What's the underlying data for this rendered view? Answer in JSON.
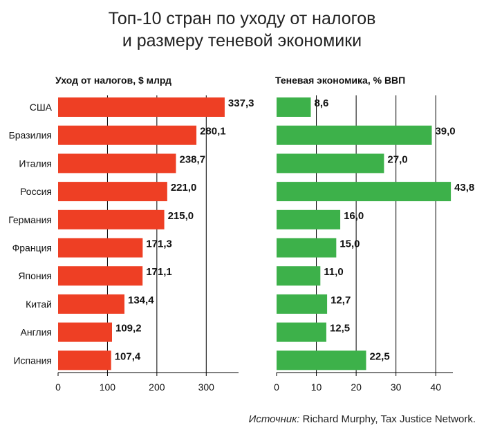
{
  "title_line1": "Топ-10 стран по уходу от налогов",
  "title_line2": "и размеру теневой экономики",
  "source_label": "Источник:",
  "source_text": " Richard Murphy, Tax Justice Network.",
  "colors": {
    "left_bars": "#ee3f24",
    "right_bars": "#3db14a",
    "text": "#111111",
    "grid": "#000000"
  },
  "chart_data": [
    {
      "type": "bar",
      "orientation": "horizontal",
      "title": "Уход от налогов, $ млрд",
      "categories": [
        "США",
        "Бразилия",
        "Италия",
        "Россия",
        "Германия",
        "Франция",
        "Япония",
        "Китай",
        "Англия",
        "Испания"
      ],
      "values": [
        337.3,
        280.1,
        238.7,
        221.0,
        215.0,
        171.3,
        171.1,
        134.4,
        109.2,
        107.4
      ],
      "value_labels": [
        "337,3",
        "280,1",
        "238,7",
        "221,0",
        "215,0",
        "171,3",
        "171,1",
        "134,4",
        "109,2",
        "107,4"
      ],
      "xlim": [
        0,
        350
      ],
      "xticks": [
        0,
        100,
        200,
        300
      ],
      "gridlines": [
        100,
        200,
        300
      ]
    },
    {
      "type": "bar",
      "orientation": "horizontal",
      "title": "Теневая экономика, % ВВП",
      "categories": [
        "США",
        "Бразилия",
        "Италия",
        "Россия",
        "Германия",
        "Франция",
        "Япония",
        "Китай",
        "Англия",
        "Испания"
      ],
      "values": [
        8.6,
        39.0,
        27.0,
        43.8,
        16.0,
        15.0,
        11.0,
        12.7,
        12.5,
        22.5
      ],
      "value_labels": [
        "8,6",
        "39,0",
        "27,0",
        "43,8",
        "16,0",
        "15,0",
        "11,0",
        "12,7",
        "12,5",
        "22,5"
      ],
      "xlim": [
        0,
        45
      ],
      "xticks": [
        0,
        10,
        20,
        30,
        40
      ],
      "gridlines": [
        10,
        20,
        30,
        40
      ]
    }
  ]
}
